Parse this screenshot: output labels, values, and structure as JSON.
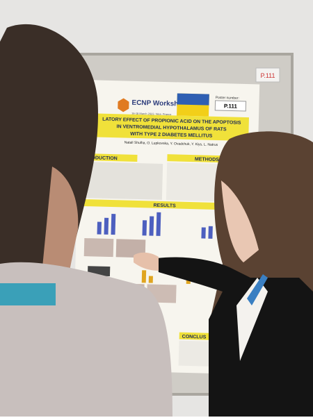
{
  "board_label": "P.111",
  "poster": {
    "logo": "ECNP Workshop",
    "dates": "16-18 March 2023, Nice, France",
    "poster_number_label": "Poster number:",
    "poster_number": "P.111",
    "title_lines": [
      "LATORY EFFECT OF PROPIONIC ACID ON THE APOPTOSIS",
      "IN VENTROMEDIAL HYPOTHALAMUS OF RATS",
      "WITH TYPE 2 DIABETES MELLITUS"
    ],
    "authors": "Natali Shulha, O. Lupkovska, Y. Ovadchuk, Y. Kiys, L. Natrus",
    "sections": [
      "RODUCTION",
      "METHODS",
      "RESULTS",
      "CONCLUS"
    ]
  }
}
